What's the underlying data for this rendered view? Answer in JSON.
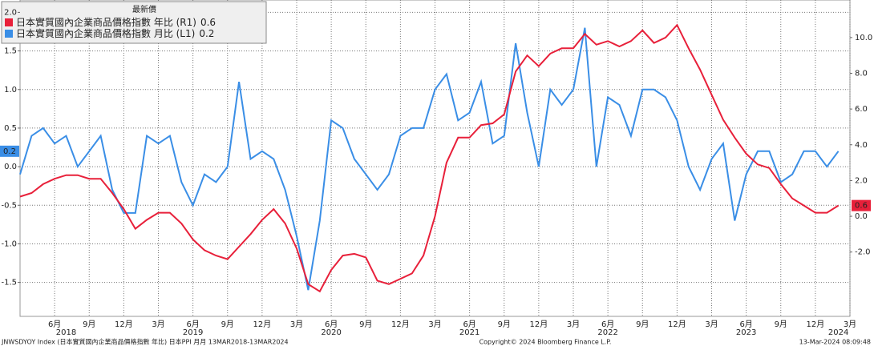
{
  "chart_data": {
    "type": "line",
    "legend_title": "最新價",
    "categories": [
      null,
      null,
      null,
      "6月",
      null,
      null,
      "9月",
      null,
      null,
      "12月",
      null,
      null,
      "3月",
      null,
      null,
      "6月",
      null,
      null,
      "9月",
      null,
      null,
      "12月",
      null,
      null,
      "3月",
      null,
      null,
      "6月",
      null,
      null,
      "9月",
      null,
      null,
      "12月",
      null,
      null,
      "3月",
      null,
      null,
      "6月",
      null,
      null,
      "9月",
      null,
      null,
      "12月",
      null,
      null,
      "3月",
      null,
      null,
      "6月",
      null,
      null,
      "9月",
      null,
      null,
      "12月",
      null,
      null,
      "3月",
      null,
      null,
      "6月",
      null,
      null,
      "9月",
      null,
      null,
      "12月",
      null,
      null,
      "3月"
    ],
    "category_years": [
      null,
      null,
      null,
      null,
      "2018",
      null,
      null,
      null,
      null,
      null,
      null,
      null,
      null,
      null,
      null,
      "2019",
      null,
      null,
      null,
      null,
      null,
      null,
      null,
      null,
      null,
      null,
      null,
      "2020",
      null,
      null,
      null,
      null,
      null,
      null,
      null,
      null,
      null,
      null,
      null,
      "2021",
      null,
      null,
      null,
      null,
      null,
      null,
      null,
      null,
      null,
      null,
      null,
      "2022",
      null,
      null,
      null,
      null,
      null,
      null,
      null,
      null,
      null,
      null,
      null,
      "2023",
      null,
      null,
      null,
      null,
      null,
      null,
      null,
      "2024",
      null
    ],
    "series": [
      {
        "name": "日本實質國內企業商品價格指數 年比 (R1)",
        "color": "#e8203a",
        "axis": "y2",
        "values": [
          1.1,
          1.3,
          1.8,
          2.1,
          2.3,
          2.3,
          2.1,
          2.1,
          1.3,
          0.4,
          -0.7,
          -0.2,
          0.2,
          0.2,
          -0.4,
          -1.3,
          -1.9,
          -2.2,
          -2.4,
          -1.7,
          -1.0,
          -0.2,
          0.4,
          -0.4,
          -1.8,
          -3.8,
          -4.2,
          -3.0,
          -2.2,
          -2.1,
          -2.3,
          -3.6,
          -3.8,
          -3.5,
          -3.2,
          -2.2,
          0.0,
          3.0,
          4.4,
          4.4,
          5.1,
          5.2,
          5.7,
          8.1,
          9.0,
          8.4,
          9.1,
          9.4,
          9.4,
          10.2,
          9.6,
          9.8,
          9.5,
          9.8,
          10.4,
          9.7,
          10.0,
          10.7,
          9.4,
          8.2,
          6.8,
          5.4,
          4.4,
          3.5,
          2.9,
          2.7,
          1.8,
          1.0,
          0.6,
          0.2,
          0.2,
          0.6,
          null
        ]
      },
      {
        "name": "日本實質國內企業商品價格指數 月比 (L1)",
        "color": "#3a8ee6",
        "values": [
          -0.1,
          0.4,
          0.5,
          0.3,
          0.4,
          0.0,
          0.2,
          0.4,
          -0.3,
          -0.6,
          -0.6,
          0.4,
          0.3,
          0.4,
          -0.2,
          -0.5,
          -0.1,
          -0.2,
          0.0,
          1.1,
          0.1,
          0.2,
          0.1,
          -0.3,
          -0.9,
          -1.6,
          -0.7,
          0.6,
          0.5,
          0.1,
          -0.1,
          -0.3,
          -0.1,
          0.4,
          0.5,
          0.5,
          1.0,
          1.2,
          0.6,
          0.7,
          1.1,
          0.3,
          0.4,
          1.6,
          0.7,
          0.0,
          1.0,
          0.8,
          1.0,
          1.8,
          0.0,
          0.9,
          0.8,
          0.4,
          1.0,
          1.0,
          0.9,
          0.6,
          0.0,
          -0.3,
          0.1,
          0.3,
          -0.7,
          -0.1,
          0.2,
          0.2,
          -0.2,
          -0.1,
          0.2,
          0.2,
          0.0,
          0.2,
          null
        ]
      }
    ],
    "ylim": [
      -1.94,
      2.16
    ],
    "yticks": [
      {
        "value": 2,
        "label": "2.0"
      },
      1.5,
      {
        "value": 1,
        "label": "1.0"
      },
      0.5,
      {
        "value": 0,
        "label": "0.0"
      },
      -0.5,
      {
        "value": -1,
        "label": "-1.0"
      },
      -1.5
    ],
    "y2lim": [
      -5.6,
      12.1
    ],
    "y2ticks": [
      {
        "value": 10,
        "label": "10.0"
      },
      {
        "value": 8,
        "label": "8.0"
      },
      {
        "value": 6,
        "label": "6.0"
      },
      {
        "value": 4,
        "label": "4.0"
      },
      {
        "value": 2,
        "label": "2.0"
      },
      {
        "value": 0,
        "label": "0.0"
      },
      {
        "value": -2,
        "label": "-2.0"
      }
    ],
    "grid": true,
    "legend": "top-left",
    "footer": {
      "left": "JNWSDYOY Index (日本實質國內企業商品價格指數 年比) 日本PPI 月月 13MAR2018-13MAR2024",
      "center": "Copyright© 2024 Bloomberg Finance L.P.",
      "right": "13-Mar-2024 08:09:48"
    }
  }
}
